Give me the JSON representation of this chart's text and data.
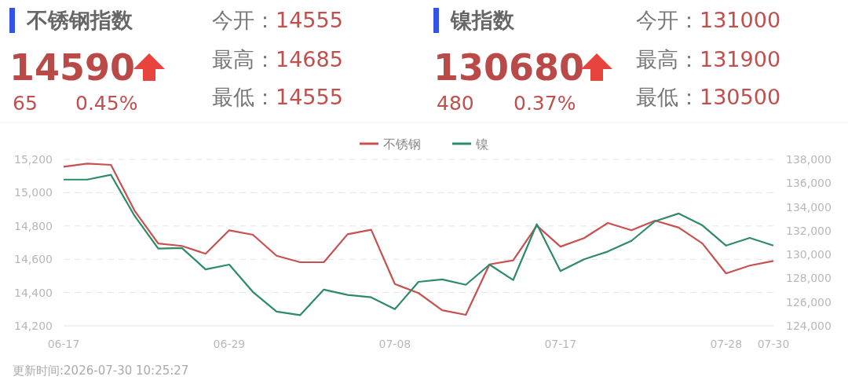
{
  "chart_data": {
    "type": "line",
    "categories": [
      "06-17",
      null,
      null,
      null,
      null,
      null,
      null,
      "06-29",
      null,
      null,
      null,
      null,
      null,
      null,
      "07-08",
      null,
      null,
      null,
      null,
      null,
      null,
      "07-17",
      null,
      null,
      null,
      null,
      null,
      null,
      "07-28",
      null,
      "07-30"
    ],
    "series": [
      {
        "name": "不锈钢",
        "color": "#c8504f",
        "values": [
          15156,
          15175,
          15167,
          14892,
          14695,
          14680,
          14633,
          14774,
          14747,
          14621,
          14582,
          14582,
          14750,
          14777,
          14451,
          14397,
          14294,
          14266,
          14569,
          14593,
          14802,
          14676,
          14727,
          14818,
          14774,
          14832,
          14790,
          14695,
          14515,
          14562,
          14590
        ]
      },
      {
        "name": "镍",
        "color": "#2e8b68",
        "axis": "y2",
        "values": [
          136300,
          136300,
          136700,
          133250,
          130500,
          130550,
          128750,
          129150,
          126850,
          125200,
          124900,
          127050,
          126600,
          126400,
          125400,
          127700,
          127900,
          127450,
          129150,
          127850,
          132550,
          128600,
          129600,
          130250,
          131150,
          132800,
          133450,
          132450,
          130750,
          131400,
          130750
        ]
      }
    ],
    "ylim": [
      14200,
      15200
    ],
    "yticks": [
      {
        "value": 14200,
        "label": "14,200"
      },
      {
        "value": 14400,
        "label": "14,400"
      },
      {
        "value": 14600,
        "label": "14,600"
      },
      {
        "value": 14800,
        "label": "14,800"
      },
      {
        "value": 15000,
        "label": "15,000"
      },
      {
        "value": 15200,
        "label": "15,200"
      }
    ],
    "y2lim": [
      124000,
      138000
    ],
    "y2ticks": [
      {
        "value": 124000,
        "label": "124,000"
      },
      {
        "value": 126000,
        "label": "126,000"
      },
      {
        "value": 128000,
        "label": "128,000"
      },
      {
        "value": 130000,
        "label": "130,000"
      },
      {
        "value": 132000,
        "label": "132,000"
      },
      {
        "value": 134000,
        "label": "134,000"
      },
      {
        "value": 136000,
        "label": "136,000"
      },
      {
        "value": 138000,
        "label": "138,000"
      }
    ],
    "grid": "y",
    "legend": "top",
    "marker": "none",
    "annotations": [
      "不锈钢指数",
      "14590",
      "65",
      "0.45%",
      "今开：14555",
      "最高：14685",
      "最低：14555",
      "镍指数",
      "130680",
      "480",
      "0.37%",
      "今开：131000",
      "最高：131900",
      "最低：130500",
      "更新时间:2026-07-30 10:25:27"
    ]
  }
}
